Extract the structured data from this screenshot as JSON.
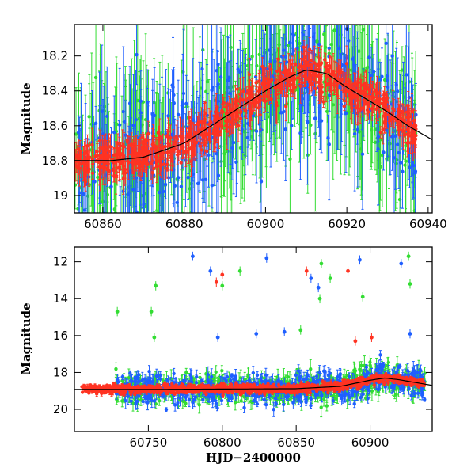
{
  "chart_data": [
    {
      "type": "scatter",
      "title": "",
      "xlabel": "",
      "ylabel": "Magnitude",
      "xlim": [
        60853,
        60941
      ],
      "ylim": [
        19.1,
        18.02
      ],
      "y_inverted": true,
      "x_ticks": [
        60860,
        60880,
        60900,
        60920,
        60940
      ],
      "y_ticks": [
        18.2,
        18.4,
        18.6,
        18.8,
        19
      ],
      "y_tick_labels": [
        "18.2",
        "18.4",
        "18.6",
        "18.8",
        "19"
      ],
      "grid": false,
      "legend": "none",
      "error_bars": true,
      "colors": {
        "green": "#33dd33",
        "blue": "#1f5fff",
        "red": "#ff3322",
        "model": "#000000"
      },
      "model_curve": {
        "x": [
          60853,
          60862,
          60870,
          60880,
          60890,
          60900,
          60906,
          60910,
          60915,
          60920,
          60925,
          60930,
          60935,
          60941
        ],
        "y": [
          18.8,
          18.8,
          18.78,
          18.7,
          18.55,
          18.4,
          18.32,
          18.28,
          18.3,
          18.38,
          18.45,
          18.52,
          18.6,
          18.68
        ]
      },
      "series": [
        {
          "color": "red",
          "point_count": 700,
          "x_range": [
            60853,
            60937
          ],
          "typical_error": 0.06
        },
        {
          "color": "blue",
          "point_count": 330,
          "x_range": [
            60853,
            60937
          ],
          "typical_error": 0.22
        },
        {
          "color": "green",
          "point_count": 370,
          "x_range": [
            60853,
            60937
          ],
          "typical_error": 0.28
        }
      ]
    },
    {
      "type": "scatter",
      "title": "",
      "xlabel": "HJD−2400000",
      "ylabel": "Magnitude",
      "xlim": [
        60700,
        60942
      ],
      "ylim": [
        21.2,
        11.2
      ],
      "y_inverted": true,
      "x_ticks": [
        60750,
        60800,
        60850,
        60900
      ],
      "y_ticks": [
        12,
        14,
        16,
        18,
        20
      ],
      "y_tick_labels": [
        "12",
        "14",
        "16",
        "18",
        "20"
      ],
      "grid": false,
      "legend": "none",
      "error_bars": true,
      "colors": {
        "green": "#33dd33",
        "blue": "#1f5fff",
        "red": "#ff3322",
        "model": "#000000"
      },
      "model_curve": {
        "x": [
          60700,
          60750,
          60800,
          60850,
          60880,
          60900,
          60910,
          60920,
          60942
        ],
        "y": [
          18.92,
          18.92,
          18.9,
          18.88,
          18.75,
          18.42,
          18.3,
          18.4,
          18.7
        ]
      },
      "series": [
        {
          "color": "red",
          "point_count": 1100,
          "x_range": [
            60705,
            60937
          ],
          "typical_error": 0.08
        },
        {
          "color": "blue",
          "point_count": 560,
          "x_range": [
            60728,
            60937
          ],
          "typical_error": 0.25
        },
        {
          "color": "green",
          "point_count": 620,
          "x_range": [
            60728,
            60937
          ],
          "typical_error": 0.3
        }
      ],
      "outliers": [
        {
          "color": "blue",
          "x": 60780,
          "y": 11.7
        },
        {
          "color": "blue",
          "x": 60792,
          "y": 12.5
        },
        {
          "color": "blue",
          "x": 60830,
          "y": 11.8
        },
        {
          "color": "blue",
          "x": 60860,
          "y": 12.9
        },
        {
          "color": "blue",
          "x": 60893,
          "y": 11.9
        },
        {
          "color": "blue",
          "x": 60921,
          "y": 12.1
        },
        {
          "color": "blue",
          "x": 60865,
          "y": 13.4
        },
        {
          "color": "red",
          "x": 60796,
          "y": 13.1
        },
        {
          "color": "red",
          "x": 60857,
          "y": 12.5
        },
        {
          "color": "red",
          "x": 60885,
          "y": 12.5
        },
        {
          "color": "red",
          "x": 60800,
          "y": 12.7
        },
        {
          "color": "green",
          "x": 60800,
          "y": 13.3
        },
        {
          "color": "green",
          "x": 60812,
          "y": 12.5
        },
        {
          "color": "green",
          "x": 60867,
          "y": 12.1
        },
        {
          "color": "green",
          "x": 60873,
          "y": 12.9
        },
        {
          "color": "green",
          "x": 60926,
          "y": 11.7
        },
        {
          "color": "green",
          "x": 60927,
          "y": 13.2
        },
        {
          "color": "green",
          "x": 60755,
          "y": 13.3
        },
        {
          "color": "green",
          "x": 60752,
          "y": 14.7
        },
        {
          "color": "green",
          "x": 60729,
          "y": 14.7
        },
        {
          "color": "green",
          "x": 60895,
          "y": 13.9
        },
        {
          "color": "green",
          "x": 60866,
          "y": 14.0
        },
        {
          "color": "blue",
          "x": 60823,
          "y": 15.9
        },
        {
          "color": "blue",
          "x": 60842,
          "y": 15.8
        },
        {
          "color": "blue",
          "x": 60797,
          "y": 16.1
        },
        {
          "color": "green",
          "x": 60853,
          "y": 15.7
        },
        {
          "color": "red",
          "x": 60890,
          "y": 16.3
        },
        {
          "color": "red",
          "x": 60901,
          "y": 16.1
        },
        {
          "color": "blue",
          "x": 60927,
          "y": 15.9
        },
        {
          "color": "green",
          "x": 60754,
          "y": 16.1
        }
      ]
    }
  ]
}
